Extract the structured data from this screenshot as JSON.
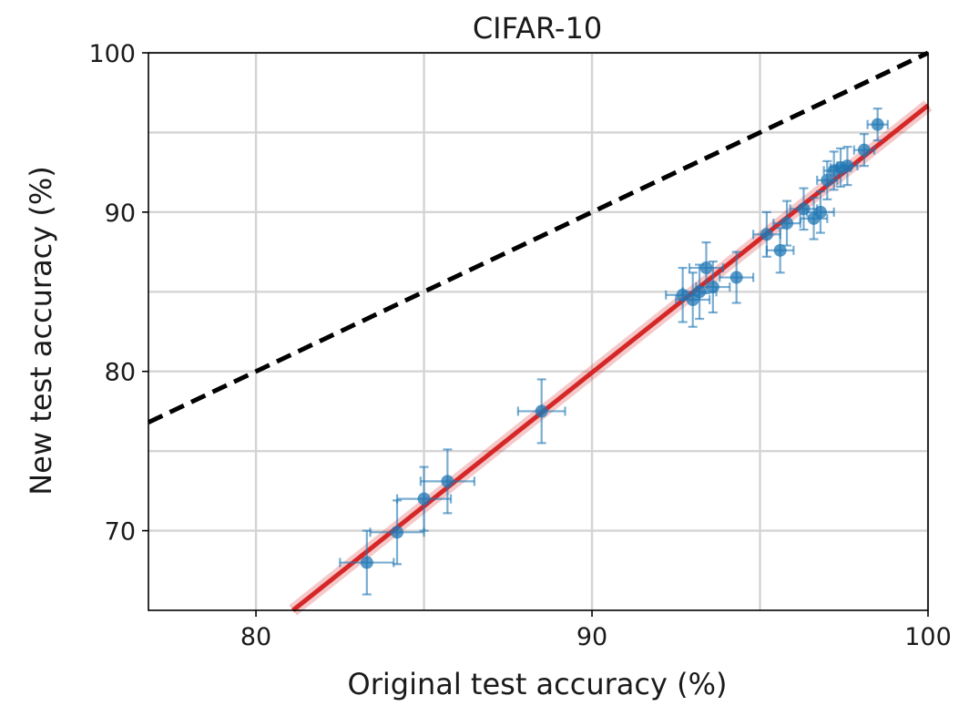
{
  "chart_data": {
    "type": "scatter",
    "title": "CIFAR-10",
    "xlabel": "Original test accuracy (%)",
    "ylabel": "New test accuracy (%)",
    "xlim": [
      76.8,
      100
    ],
    "ylim": [
      65,
      100
    ],
    "x_ticks": [
      80,
      90,
      100
    ],
    "y_ticks": [
      70,
      80,
      90,
      100
    ],
    "x_tick_labels": [
      "80",
      "90",
      "100"
    ],
    "y_tick_labels": [
      "70",
      "80",
      "90",
      "100"
    ],
    "x_minor_grid": [
      85,
      95
    ],
    "y_minor_grid": [
      75,
      85,
      95
    ],
    "grid": true,
    "reference_line": {
      "style": "dashed",
      "color": "#000000",
      "points": [
        [
          76.8,
          76.8
        ],
        [
          100,
          100
        ]
      ]
    },
    "fit_line": {
      "color": "#d62728",
      "points": [
        [
          81.1,
          65
        ],
        [
          100,
          96.7
        ]
      ]
    },
    "point_color": "#1f77b4",
    "series": [
      {
        "points": [
          {
            "x": 83.3,
            "y": 68.0,
            "xerr": 0.8,
            "yerr": 2.0
          },
          {
            "x": 84.2,
            "y": 69.9,
            "xerr": 0.8,
            "yerr": 2.0
          },
          {
            "x": 85.0,
            "y": 72.0,
            "xerr": 0.8,
            "yerr": 2.0
          },
          {
            "x": 85.7,
            "y": 73.1,
            "xerr": 0.8,
            "yerr": 2.0
          },
          {
            "x": 88.5,
            "y": 77.5,
            "xerr": 0.7,
            "yerr": 2.0
          },
          {
            "x": 92.7,
            "y": 84.8,
            "xerr": 0.5,
            "yerr": 1.7
          },
          {
            "x": 93.0,
            "y": 84.5,
            "xerr": 0.5,
            "yerr": 1.7
          },
          {
            "x": 93.2,
            "y": 85.0,
            "xerr": 0.5,
            "yerr": 1.7
          },
          {
            "x": 93.4,
            "y": 86.5,
            "xerr": 0.5,
            "yerr": 1.6
          },
          {
            "x": 93.6,
            "y": 85.3,
            "xerr": 0.5,
            "yerr": 1.6
          },
          {
            "x": 94.3,
            "y": 85.9,
            "xerr": 0.5,
            "yerr": 1.6
          },
          {
            "x": 95.2,
            "y": 88.6,
            "xerr": 0.4,
            "yerr": 1.4
          },
          {
            "x": 95.6,
            "y": 87.6,
            "xerr": 0.4,
            "yerr": 1.4
          },
          {
            "x": 95.8,
            "y": 89.3,
            "xerr": 0.4,
            "yerr": 1.4
          },
          {
            "x": 96.3,
            "y": 90.2,
            "xerr": 0.4,
            "yerr": 1.3
          },
          {
            "x": 96.6,
            "y": 89.6,
            "xerr": 0.4,
            "yerr": 1.3
          },
          {
            "x": 96.8,
            "y": 90.0,
            "xerr": 0.4,
            "yerr": 1.3
          },
          {
            "x": 97.0,
            "y": 92.0,
            "xerr": 0.3,
            "yerr": 1.2
          },
          {
            "x": 97.2,
            "y": 92.6,
            "xerr": 0.3,
            "yerr": 1.2
          },
          {
            "x": 97.4,
            "y": 92.8,
            "xerr": 0.3,
            "yerr": 1.2
          },
          {
            "x": 97.6,
            "y": 92.9,
            "xerr": 0.3,
            "yerr": 1.2
          },
          {
            "x": 98.1,
            "y": 93.9,
            "xerr": 0.3,
            "yerr": 1.0
          },
          {
            "x": 98.5,
            "y": 95.5,
            "xerr": 0.3,
            "yerr": 1.0
          }
        ]
      }
    ]
  }
}
